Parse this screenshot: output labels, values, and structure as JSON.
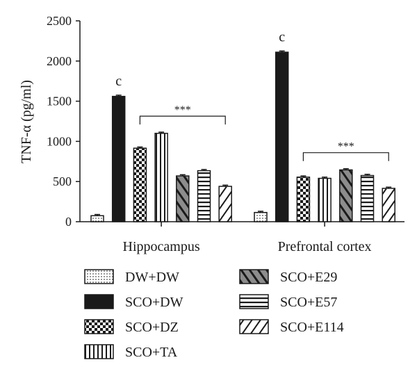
{
  "chart_data": {
    "type": "bar",
    "ylabel": "TNF-α (pg/ml)",
    "xlabel": "",
    "ylim": [
      0,
      2500
    ],
    "yticks": [
      0,
      500,
      1000,
      1500,
      2000,
      2500
    ],
    "categories": [
      "Hippocampus",
      "Prefrontal cortex"
    ],
    "series": [
      {
        "name": "DW+DW",
        "pattern": "dots",
        "values": [
          75,
          115
        ],
        "errors": [
          15,
          15
        ]
      },
      {
        "name": "SCO+DW",
        "pattern": "solid",
        "values": [
          1560,
          2110
        ],
        "errors": [
          15,
          15
        ]
      },
      {
        "name": "SCO+DZ",
        "pattern": "checker",
        "values": [
          915,
          555
        ],
        "errors": [
          15,
          15
        ]
      },
      {
        "name": "SCO+TA",
        "pattern": "vstripes",
        "values": [
          1100,
          540
        ],
        "errors": [
          15,
          15
        ]
      },
      {
        "name": "SCO+E29",
        "pattern": "diag-gray",
        "values": [
          570,
          645
        ],
        "errors": [
          15,
          15
        ]
      },
      {
        "name": "SCO+E57",
        "pattern": "hstripes",
        "values": [
          635,
          575
        ],
        "errors": [
          15,
          15
        ]
      },
      {
        "name": "SCO+E114",
        "pattern": "diag-white",
        "values": [
          440,
          415
        ],
        "errors": [
          15,
          15
        ]
      }
    ],
    "annotations": {
      "bar_letter": "c",
      "significance": "***"
    },
    "legend_placement": "bottom",
    "grid": false
  },
  "colors": {
    "ink": "#1a1a1a",
    "fill_gray": "#8c8c8c",
    "background": "#ffffff"
  }
}
